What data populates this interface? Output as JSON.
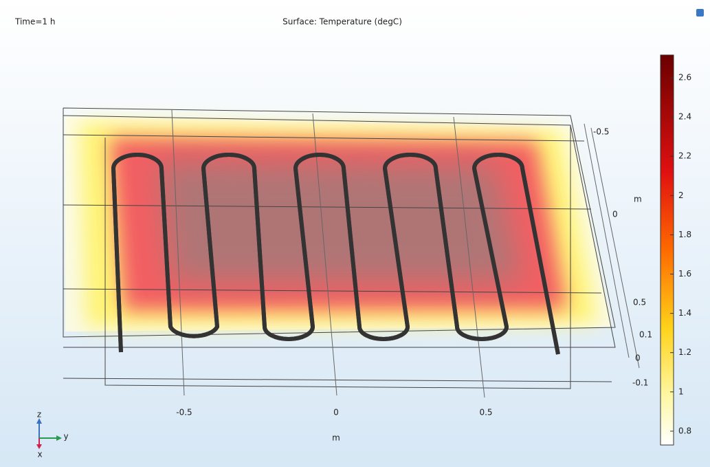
{
  "header": {
    "time": "Time=1 h",
    "title": "Surface: Temperature (degC)"
  },
  "colorbar": {
    "ticks": [
      "2.6",
      "2.4",
      "2.2",
      "2",
      "1.8",
      "1.6",
      "1.4",
      "1.2",
      "1",
      "0.8"
    ]
  },
  "y_axis": {
    "ticks": [
      "-0.5",
      "0",
      "0.5"
    ],
    "label": "m"
  },
  "x_axis": {
    "ticks": [
      "-0.5",
      "0",
      "0.5"
    ],
    "label": "m"
  },
  "z_axis": {
    "ticks": [
      "0.1",
      "0",
      "-0.1"
    ]
  },
  "triad": {
    "z": "z",
    "y": "y",
    "x": "x"
  }
}
